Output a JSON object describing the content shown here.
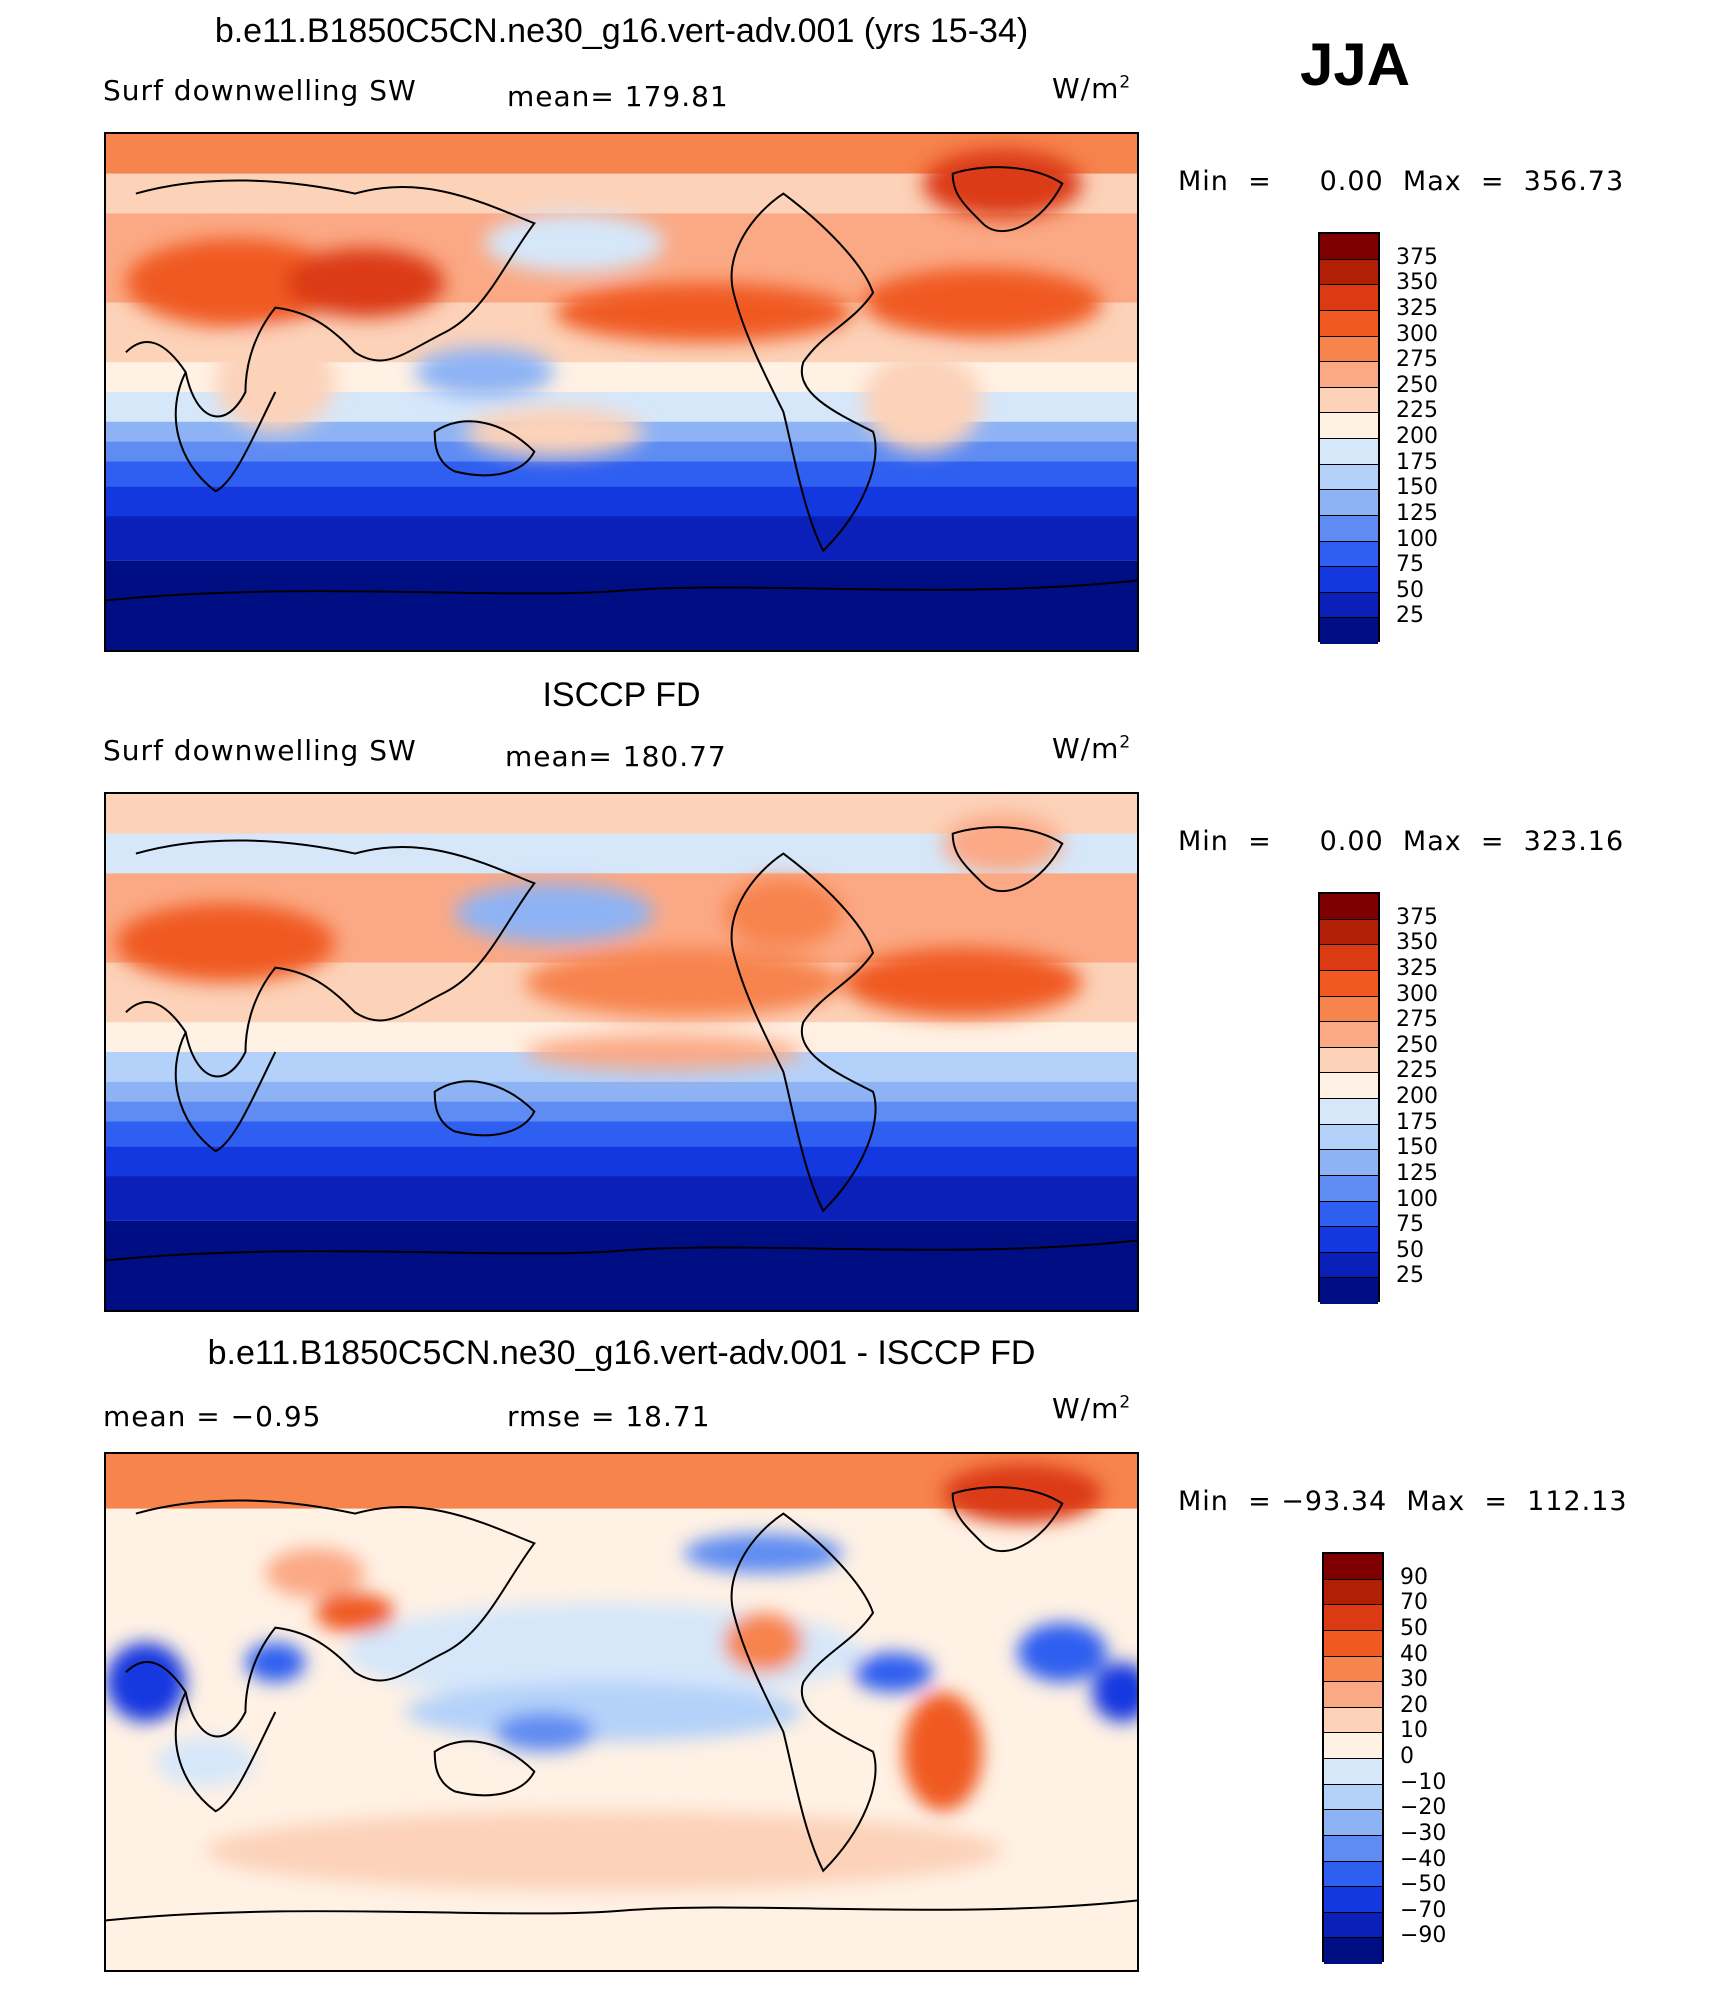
{
  "season": "JJA",
  "colors": {
    "abs": [
      "#7f0000",
      "#b11f06",
      "#db3a13",
      "#f05a22",
      "#f7834d",
      "#fba985",
      "#fcd2b9",
      "#fff1e4",
      "#d6e7fa",
      "#b4d1f9",
      "#8db3f5",
      "#5e8cf2",
      "#2e5ff0",
      "#1338e0",
      "#0a20b8",
      "#000e84"
    ],
    "diff": [
      "#7f0000",
      "#b11f06",
      "#db3a13",
      "#f05a22",
      "#f7834d",
      "#fba985",
      "#fcd2b9",
      "#fff1e4",
      "#d6e7fa",
      "#b4d1f9",
      "#8db3f5",
      "#5e8cf2",
      "#2e5ff0",
      "#1338e0",
      "#0a20b8",
      "#000e84"
    ]
  },
  "panels": [
    {
      "title": "b.e11.B1850C5CN.ne30_g16.vert-adv.001 (yrs 15-34)",
      "left_label": "Surf  downwelling  SW",
      "center_label": "mean=  179.81",
      "units": "W/m",
      "units_sup": "2",
      "minmax": "Min  =     0.00  Max  =  356.73",
      "colorbar_labels": [
        "375",
        "350",
        "325",
        "300",
        "275",
        "250",
        "225",
        "200",
        "175",
        "150",
        "125",
        "100",
        "75",
        "50",
        "25"
      ]
    },
    {
      "title": "ISCCP FD",
      "left_label": "Surf  downwelling  SW",
      "center_label": "mean=  180.77",
      "units": "W/m",
      "units_sup": "2",
      "minmax": "Min  =     0.00  Max  =  323.16",
      "colorbar_labels": [
        "375",
        "350",
        "325",
        "300",
        "275",
        "250",
        "225",
        "200",
        "175",
        "150",
        "125",
        "100",
        "75",
        "50",
        "25"
      ]
    },
    {
      "title": "b.e11.B1850C5CN.ne30_g16.vert-adv.001 - ISCCP FD",
      "left_label": "mean  =    −0.95",
      "center_label": "rmse  =    18.71",
      "units": "W/m",
      "units_sup": "2",
      "minmax": "Min  = −93.34  Max  =  112.13",
      "colorbar_labels": [
        "90",
        "70",
        "50",
        "40",
        "30",
        "20",
        "10",
        "0",
        "−10",
        "−20",
        "−30",
        "−40",
        "−50",
        "−70",
        "−90"
      ]
    }
  ]
}
